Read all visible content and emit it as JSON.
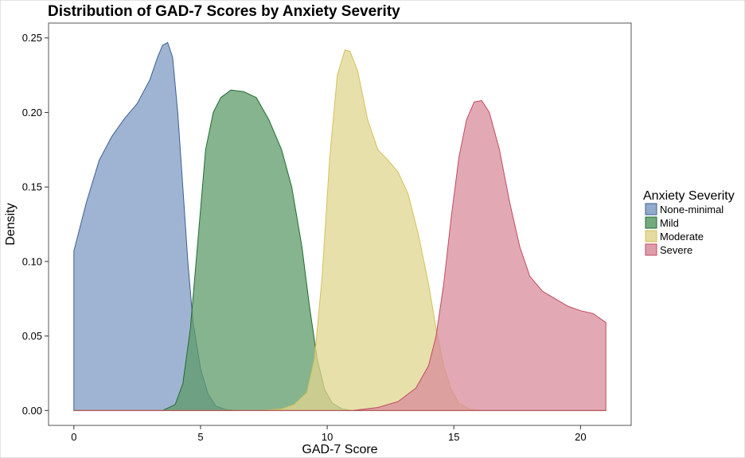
{
  "chart_data": {
    "type": "area",
    "title": "Distribution of GAD-7 Scores by Anxiety Severity",
    "xlabel": "GAD-7 Score",
    "ylabel": "Density",
    "xlim": [
      -1,
      22
    ],
    "ylim": [
      -0.01,
      0.26
    ],
    "xticks": [
      0,
      5,
      10,
      15,
      20
    ],
    "yticks": [
      0.0,
      0.05,
      0.1,
      0.15,
      0.2,
      0.25
    ],
    "ytick_labels": [
      "0.00",
      "0.05",
      "0.10",
      "0.15",
      "0.20",
      "0.25"
    ],
    "grid": false,
    "legend": {
      "title": "Anxiety Severity",
      "position": "right"
    },
    "series": [
      {
        "name": "None-minimal",
        "fill": "#7f9bc3",
        "stroke": "#3c5e92",
        "points": [
          [
            0,
            0.107
          ],
          [
            0.5,
            0.14
          ],
          [
            1,
            0.168
          ],
          [
            1.5,
            0.184
          ],
          [
            2,
            0.196
          ],
          [
            2.5,
            0.206
          ],
          [
            3,
            0.222
          ],
          [
            3.3,
            0.237
          ],
          [
            3.5,
            0.245
          ],
          [
            3.7,
            0.247
          ],
          [
            3.9,
            0.237
          ],
          [
            4.1,
            0.2
          ],
          [
            4.3,
            0.15
          ],
          [
            4.5,
            0.1
          ],
          [
            4.7,
            0.06
          ],
          [
            5,
            0.028
          ],
          [
            5.3,
            0.011
          ],
          [
            5.6,
            0.003
          ],
          [
            6,
            0.0005
          ],
          [
            6.5,
            0
          ],
          [
            21,
            0
          ]
        ]
      },
      {
        "name": "Mild",
        "fill": "#5d9b68",
        "stroke": "#206b32",
        "points": [
          [
            0,
            0
          ],
          [
            3.5,
            0
          ],
          [
            4,
            0.004
          ],
          [
            4.3,
            0.018
          ],
          [
            4.6,
            0.055
          ],
          [
            4.9,
            0.115
          ],
          [
            5.2,
            0.175
          ],
          [
            5.5,
            0.2
          ],
          [
            5.8,
            0.21
          ],
          [
            6.2,
            0.215
          ],
          [
            6.7,
            0.214
          ],
          [
            7.2,
            0.21
          ],
          [
            7.7,
            0.195
          ],
          [
            8.2,
            0.175
          ],
          [
            8.6,
            0.15
          ],
          [
            9,
            0.11
          ],
          [
            9.3,
            0.07
          ],
          [
            9.6,
            0.035
          ],
          [
            9.9,
            0.014
          ],
          [
            10.2,
            0.005
          ],
          [
            10.6,
            0.001
          ],
          [
            11,
            0
          ],
          [
            21,
            0
          ]
        ]
      },
      {
        "name": "Moderate",
        "fill": "#e0d58f",
        "stroke": "#d2c25a",
        "points": [
          [
            0,
            0
          ],
          [
            7.5,
            0
          ],
          [
            8.2,
            0.001
          ],
          [
            8.7,
            0.004
          ],
          [
            9.2,
            0.012
          ],
          [
            9.5,
            0.035
          ],
          [
            9.8,
            0.09
          ],
          [
            10.1,
            0.17
          ],
          [
            10.4,
            0.225
          ],
          [
            10.7,
            0.242
          ],
          [
            10.9,
            0.241
          ],
          [
            11.2,
            0.228
          ],
          [
            11.6,
            0.195
          ],
          [
            12,
            0.175
          ],
          [
            12.4,
            0.168
          ],
          [
            12.8,
            0.16
          ],
          [
            13.2,
            0.145
          ],
          [
            13.6,
            0.118
          ],
          [
            14,
            0.085
          ],
          [
            14.3,
            0.055
          ],
          [
            14.6,
            0.03
          ],
          [
            14.9,
            0.014
          ],
          [
            15.2,
            0.005
          ],
          [
            15.6,
            0.001
          ],
          [
            16,
            0
          ],
          [
            21,
            0
          ]
        ]
      },
      {
        "name": "Severe",
        "fill": "#d88c9b",
        "stroke": "#c04a60",
        "points": [
          [
            0,
            0
          ],
          [
            11,
            0
          ],
          [
            12,
            0.002
          ],
          [
            12.8,
            0.006
          ],
          [
            13.5,
            0.015
          ],
          [
            14,
            0.03
          ],
          [
            14.3,
            0.05
          ],
          [
            14.6,
            0.085
          ],
          [
            14.9,
            0.13
          ],
          [
            15.2,
            0.17
          ],
          [
            15.5,
            0.195
          ],
          [
            15.8,
            0.207
          ],
          [
            16.1,
            0.208
          ],
          [
            16.4,
            0.2
          ],
          [
            16.8,
            0.175
          ],
          [
            17.2,
            0.14
          ],
          [
            17.6,
            0.11
          ],
          [
            18,
            0.09
          ],
          [
            18.5,
            0.08
          ],
          [
            19,
            0.075
          ],
          [
            19.5,
            0.07
          ],
          [
            20,
            0.067
          ],
          [
            20.5,
            0.065
          ],
          [
            21,
            0.059
          ],
          [
            21,
            0
          ]
        ]
      }
    ]
  }
}
